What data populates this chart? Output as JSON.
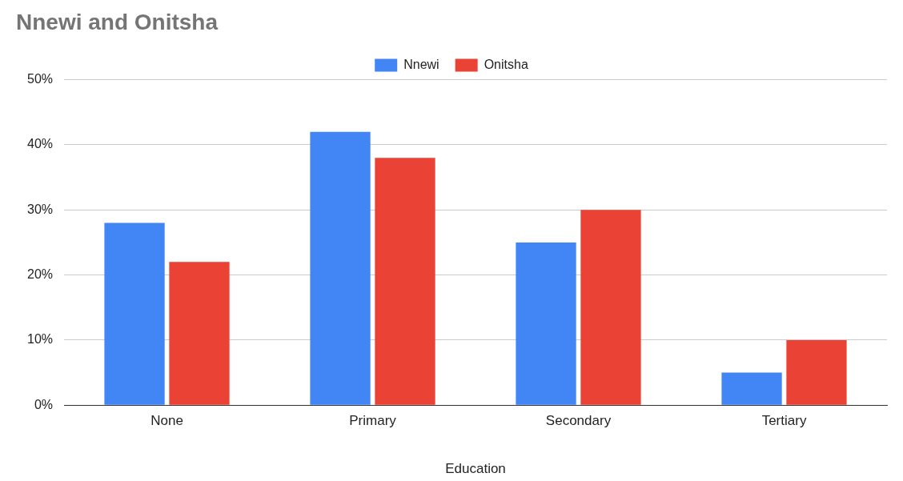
{
  "chart_data": {
    "type": "bar",
    "title": "Nnewi and Onitsha",
    "xlabel": "Education",
    "categories": [
      "None",
      "Primary",
      "Secondary",
      "Tertiary"
    ],
    "series": [
      {
        "name": "Nnewi",
        "color": "#4285f4",
        "values": [
          28,
          42,
          25,
          5
        ]
      },
      {
        "name": "Onitsha",
        "color": "#ea4335",
        "values": [
          22,
          38,
          30,
          10
        ]
      }
    ],
    "ylim": [
      0,
      50
    ],
    "yticks": [
      {
        "value": 0,
        "label": "0%"
      },
      {
        "value": 10,
        "label": "10%"
      },
      {
        "value": 20,
        "label": "20%"
      },
      {
        "value": 30,
        "label": "30%"
      },
      {
        "value": 40,
        "label": "40%"
      },
      {
        "value": 50,
        "label": "50%"
      }
    ],
    "grid": "y",
    "legend": "top"
  }
}
